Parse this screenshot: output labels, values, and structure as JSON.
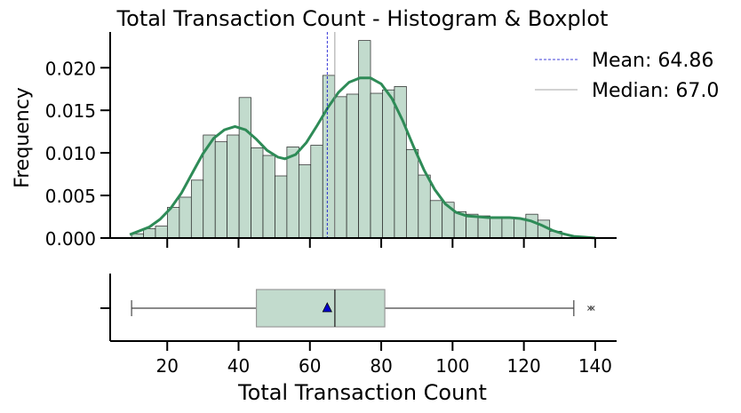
{
  "chart_data": {
    "type": "histogram",
    "title": "Total Transaction Count - Histogram & Boxplot",
    "xlabel": "Total Transaction Count",
    "ylabel": "Frequency",
    "xlim": [
      4,
      146
    ],
    "ylim": [
      0,
      0.0242
    ],
    "xticks": [
      20,
      40,
      60,
      80,
      100,
      120,
      140
    ],
    "yticks": [
      0.0,
      0.005,
      0.01,
      0.015,
      0.02
    ],
    "ytick_labels": [
      "0.000",
      "0.005",
      "0.010",
      "0.015",
      "0.020"
    ],
    "bin_width": 3.35,
    "bins": [
      {
        "x0": 10.0,
        "height": 0.0005
      },
      {
        "x0": 13.35,
        "height": 0.0011
      },
      {
        "x0": 16.7,
        "height": 0.0014
      },
      {
        "x0": 20.05,
        "height": 0.0036
      },
      {
        "x0": 23.4,
        "height": 0.0048
      },
      {
        "x0": 26.75,
        "height": 0.0068
      },
      {
        "x0": 30.1,
        "height": 0.0121
      },
      {
        "x0": 33.45,
        "height": 0.0113
      },
      {
        "x0": 36.8,
        "height": 0.0121
      },
      {
        "x0": 40.15,
        "height": 0.0165
      },
      {
        "x0": 43.5,
        "height": 0.0106
      },
      {
        "x0": 46.85,
        "height": 0.0097
      },
      {
        "x0": 50.2,
        "height": 0.0073
      },
      {
        "x0": 53.55,
        "height": 0.0107
      },
      {
        "x0": 56.9,
        "height": 0.0086
      },
      {
        "x0": 60.25,
        "height": 0.0109
      },
      {
        "x0": 63.6,
        "height": 0.0191
      },
      {
        "x0": 66.95,
        "height": 0.0166
      },
      {
        "x0": 70.3,
        "height": 0.0169
      },
      {
        "x0": 73.65,
        "height": 0.0232
      },
      {
        "x0": 77.0,
        "height": 0.017
      },
      {
        "x0": 80.35,
        "height": 0.0174
      },
      {
        "x0": 83.7,
        "height": 0.0178
      },
      {
        "x0": 87.05,
        "height": 0.0104
      },
      {
        "x0": 90.4,
        "height": 0.0074
      },
      {
        "x0": 93.75,
        "height": 0.0044
      },
      {
        "x0": 97.1,
        "height": 0.0042
      },
      {
        "x0": 100.45,
        "height": 0.0031
      },
      {
        "x0": 103.8,
        "height": 0.0028
      },
      {
        "x0": 107.15,
        "height": 0.0026
      },
      {
        "x0": 110.5,
        "height": 0.0023
      },
      {
        "x0": 113.85,
        "height": 0.0023
      },
      {
        "x0": 117.2,
        "height": 0.0023
      },
      {
        "x0": 120.55,
        "height": 0.0028
      },
      {
        "x0": 123.9,
        "height": 0.0021
      },
      {
        "x0": 127.25,
        "height": 0.0008
      }
    ],
    "kde": [
      [
        9.5,
        0.0004
      ],
      [
        12,
        0.0008
      ],
      [
        15,
        0.0013
      ],
      [
        18,
        0.0022
      ],
      [
        21,
        0.0035
      ],
      [
        24,
        0.0053
      ],
      [
        27,
        0.0076
      ],
      [
        30,
        0.0099
      ],
      [
        33,
        0.0117
      ],
      [
        36,
        0.0127
      ],
      [
        39,
        0.0131
      ],
      [
        42,
        0.0127
      ],
      [
        45,
        0.0116
      ],
      [
        48,
        0.0103
      ],
      [
        51,
        0.0095
      ],
      [
        53,
        0.0093
      ],
      [
        56,
        0.0098
      ],
      [
        59,
        0.0112
      ],
      [
        62,
        0.0132
      ],
      [
        65,
        0.0153
      ],
      [
        68,
        0.0171
      ],
      [
        71,
        0.0183
      ],
      [
        74,
        0.0188
      ],
      [
        77,
        0.0188
      ],
      [
        80,
        0.0181
      ],
      [
        83,
        0.0164
      ],
      [
        86,
        0.0138
      ],
      [
        89,
        0.0108
      ],
      [
        92,
        0.008
      ],
      [
        95,
        0.0057
      ],
      [
        98,
        0.004
      ],
      [
        101,
        0.003
      ],
      [
        104,
        0.0026
      ],
      [
        107,
        0.0025
      ],
      [
        110,
        0.0024
      ],
      [
        113,
        0.0024
      ],
      [
        116,
        0.0024
      ],
      [
        119,
        0.0023
      ],
      [
        122,
        0.002
      ],
      [
        125,
        0.0015
      ],
      [
        128,
        0.0009
      ],
      [
        131,
        0.0005
      ],
      [
        134,
        0.0002
      ],
      [
        137,
        0.0001
      ],
      [
        140,
        0.0
      ]
    ],
    "mean": 64.86,
    "median": 67.0,
    "legend": [
      {
        "label": "Mean: 64.86",
        "color": "#0000cc",
        "style": "dashed"
      },
      {
        "label": "Median: 67.0",
        "color": "#888888",
        "style": "solid"
      }
    ],
    "legend_position": "top-right",
    "boxplot": {
      "whisker_low": 10,
      "q1": 45,
      "median": 67,
      "q3": 81,
      "whisker_high": 134,
      "mean": 64.86,
      "outliers": [
        138.5,
        139.2
      ]
    },
    "colors": {
      "bar_fill": "#c2dbcd",
      "bar_edge": "#222222",
      "kde": "#2e8b57",
      "box_fill": "#c2dbcd",
      "box_edge": "#999999",
      "mean_marker": "#0000cc"
    }
  }
}
